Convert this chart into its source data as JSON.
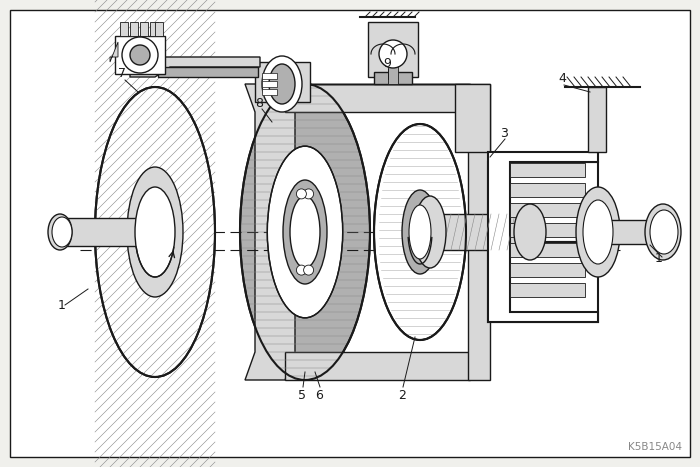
{
  "bg": "#f0f0ec",
  "lc": "#1a1a1a",
  "gray_light": "#d8d8d8",
  "gray_mid": "#b0b0b0",
  "gray_dark": "#888888",
  "white": "#ffffff",
  "watermark": "K5B15A04",
  "fig_w": 7.0,
  "fig_h": 4.67,
  "dpi": 100
}
